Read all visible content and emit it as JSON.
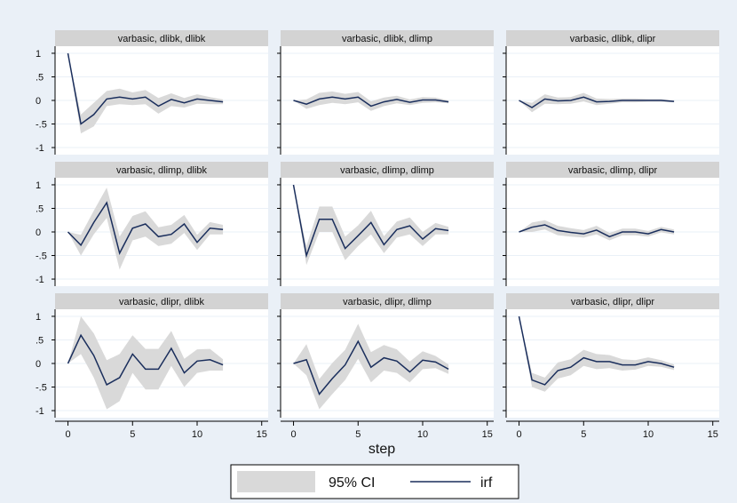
{
  "chart_data": {
    "type": "line",
    "xlabel": "step",
    "x": [
      0,
      1,
      2,
      3,
      4,
      5,
      6,
      7,
      8,
      9,
      10,
      11,
      12
    ],
    "xticks": [
      0,
      5,
      10,
      15
    ],
    "xlim": [
      -1,
      15.5
    ],
    "yticks": [
      1,
      0.5,
      0,
      -0.5,
      -1
    ],
    "ytick_labels": [
      "1",
      ".5",
      "0",
      "-.5",
      "-1"
    ],
    "ylim": [
      -1.15,
      1.15
    ],
    "grid": true,
    "legend": {
      "placement": "bottom",
      "items": [
        "95% CI",
        "irf"
      ]
    },
    "colors": {
      "ci": "#d9d9d9",
      "irf": "#1a2e5c",
      "header": "#d3d3d3",
      "background": "#eaf0f7"
    },
    "panels": [
      {
        "title": "varbasic, dlibk, dlibk",
        "irf": [
          1.0,
          -0.5,
          -0.3,
          0.03,
          0.07,
          0.03,
          0.07,
          -0.12,
          0.02,
          -0.05,
          0.03,
          0.0,
          -0.03
        ],
        "lower": [
          1.0,
          -0.7,
          -0.55,
          -0.12,
          -0.08,
          -0.1,
          -0.08,
          -0.28,
          -0.12,
          -0.15,
          -0.07,
          -0.08,
          -0.08
        ],
        "upper": [
          1.0,
          -0.3,
          -0.05,
          0.2,
          0.25,
          0.17,
          0.22,
          0.05,
          0.15,
          0.05,
          0.13,
          0.07,
          0.02
        ]
      },
      {
        "title": "varbasic, dlibk, dlimp",
        "irf": [
          0.0,
          -0.08,
          0.03,
          0.07,
          0.03,
          0.07,
          -0.12,
          -0.03,
          0.02,
          -0.04,
          0.01,
          0.01,
          -0.03
        ],
        "lower": [
          0.0,
          -0.18,
          -0.1,
          -0.05,
          -0.08,
          -0.04,
          -0.22,
          -0.12,
          -0.06,
          -0.1,
          -0.05,
          -0.04,
          -0.06
        ],
        "upper": [
          0.0,
          0.02,
          0.16,
          0.19,
          0.14,
          0.18,
          -0.02,
          0.06,
          0.1,
          0.02,
          0.07,
          0.06,
          0.0
        ]
      },
      {
        "title": "varbasic, dlibk, dlipr",
        "irf": [
          0.0,
          -0.15,
          0.03,
          -0.01,
          0.0,
          0.07,
          -0.03,
          -0.02,
          0.0,
          0.0,
          0.0,
          0.0,
          -0.02
        ],
        "lower": [
          0.0,
          -0.25,
          -0.07,
          -0.08,
          -0.07,
          -0.02,
          -0.1,
          -0.07,
          -0.04,
          -0.04,
          -0.03,
          -0.03,
          -0.04
        ],
        "upper": [
          0.0,
          -0.05,
          0.13,
          0.06,
          0.07,
          0.16,
          0.04,
          0.03,
          0.04,
          0.04,
          0.03,
          0.03,
          0.0
        ]
      },
      {
        "title": "varbasic, dlimp, dlibk",
        "irf": [
          0.0,
          -0.28,
          0.2,
          0.62,
          -0.45,
          0.08,
          0.17,
          -0.1,
          -0.05,
          0.17,
          -0.22,
          0.08,
          0.05
        ],
        "lower": [
          0.0,
          -0.5,
          -0.05,
          0.3,
          -0.8,
          -0.18,
          -0.1,
          -0.3,
          -0.25,
          -0.02,
          -0.38,
          -0.05,
          -0.05
        ],
        "upper": [
          0.0,
          -0.06,
          0.45,
          0.94,
          -0.1,
          0.34,
          0.44,
          0.1,
          0.15,
          0.36,
          -0.06,
          0.21,
          0.15
        ]
      },
      {
        "title": "varbasic, dlimp, dlimp",
        "irf": [
          1.0,
          -0.5,
          0.27,
          0.27,
          -0.35,
          -0.08,
          0.2,
          -0.27,
          0.05,
          0.13,
          -0.15,
          0.07,
          0.03
        ],
        "lower": [
          1.0,
          -0.7,
          0.0,
          0.0,
          -0.6,
          -0.3,
          -0.05,
          -0.45,
          -0.12,
          -0.05,
          -0.3,
          -0.05,
          -0.05
        ],
        "upper": [
          1.0,
          -0.3,
          0.54,
          0.54,
          -0.1,
          0.14,
          0.45,
          -0.09,
          0.22,
          0.31,
          0.0,
          0.19,
          0.11
        ]
      },
      {
        "title": "varbasic, dlimp, dlipr",
        "irf": [
          0.0,
          0.1,
          0.15,
          0.03,
          -0.01,
          -0.04,
          0.04,
          -0.1,
          0.0,
          0.0,
          -0.04,
          0.05,
          0.0
        ],
        "lower": [
          0.0,
          0.0,
          0.05,
          -0.07,
          -0.1,
          -0.12,
          -0.05,
          -0.18,
          -0.07,
          -0.07,
          -0.1,
          -0.01,
          -0.05
        ],
        "upper": [
          0.0,
          0.2,
          0.25,
          0.13,
          0.08,
          0.04,
          0.13,
          -0.02,
          0.07,
          0.07,
          0.02,
          0.11,
          0.05
        ]
      },
      {
        "title": "varbasic, dlipr, dlibk",
        "irf": [
          0.0,
          0.6,
          0.17,
          -0.45,
          -0.3,
          0.2,
          -0.12,
          -0.12,
          0.32,
          -0.2,
          0.05,
          0.08,
          -0.03
        ],
        "lower": [
          0.0,
          0.2,
          -0.3,
          -0.97,
          -0.8,
          -0.2,
          -0.55,
          -0.55,
          -0.05,
          -0.5,
          -0.2,
          -0.15,
          -0.15
        ],
        "upper": [
          0.0,
          1.0,
          0.64,
          0.07,
          0.2,
          0.6,
          0.31,
          0.31,
          0.69,
          0.1,
          0.3,
          0.31,
          0.09
        ]
      },
      {
        "title": "varbasic, dlipr, dlimp",
        "irf": [
          0.0,
          0.08,
          -0.65,
          -0.32,
          -0.03,
          0.47,
          -0.08,
          0.12,
          0.05,
          -0.18,
          0.07,
          0.03,
          -0.12
        ],
        "lower": [
          0.0,
          -0.25,
          -0.97,
          -0.65,
          -0.35,
          0.1,
          -0.4,
          -0.15,
          -0.2,
          -0.4,
          -0.12,
          -0.1,
          -0.22
        ],
        "upper": [
          0.0,
          0.41,
          -0.33,
          0.01,
          0.29,
          0.84,
          0.24,
          0.39,
          0.3,
          0.04,
          0.26,
          0.16,
          -0.02
        ]
      },
      {
        "title": "varbasic, dlipr, dlipr",
        "irf": [
          1.0,
          -0.35,
          -0.45,
          -0.15,
          -0.08,
          0.12,
          0.04,
          0.04,
          -0.03,
          -0.03,
          0.04,
          0.0,
          -0.08
        ],
        "lower": [
          1.0,
          -0.5,
          -0.6,
          -0.32,
          -0.25,
          -0.05,
          -0.12,
          -0.1,
          -0.15,
          -0.13,
          -0.05,
          -0.07,
          -0.14
        ],
        "upper": [
          1.0,
          -0.2,
          -0.3,
          0.02,
          0.09,
          0.29,
          0.2,
          0.18,
          0.09,
          0.07,
          0.13,
          0.07,
          -0.02
        ]
      }
    ]
  }
}
